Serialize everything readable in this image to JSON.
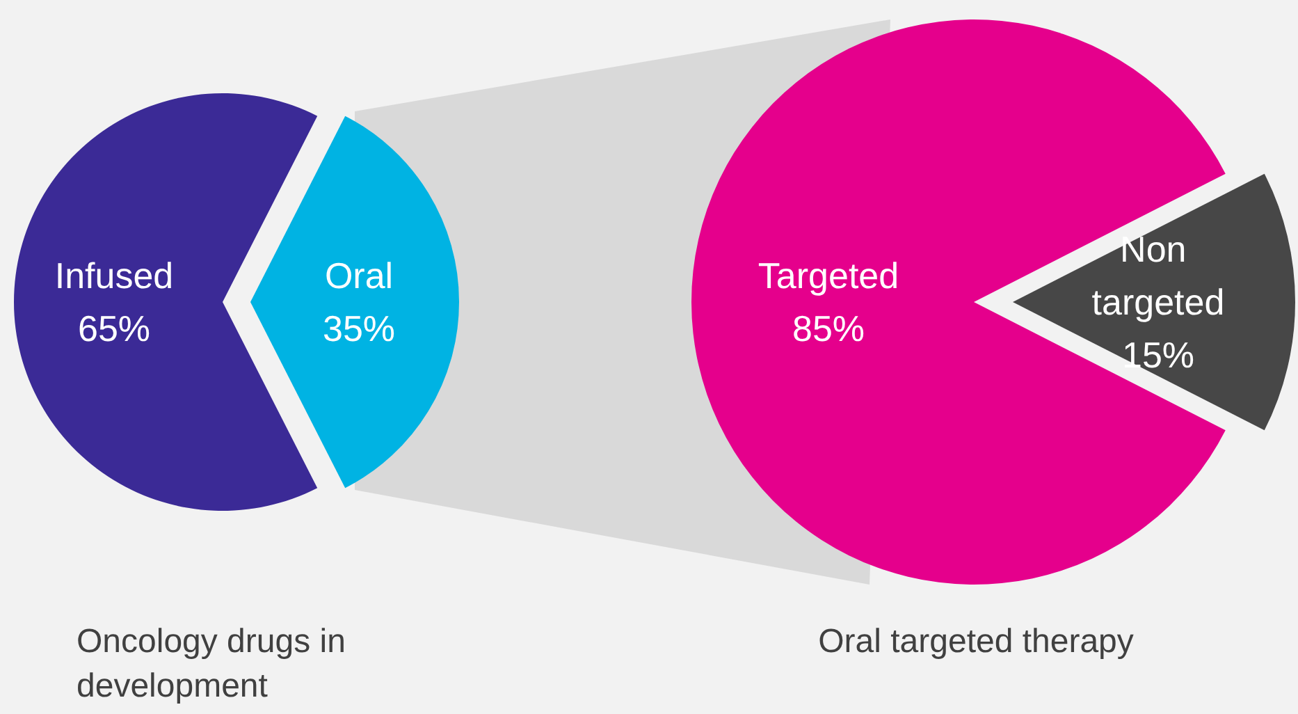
{
  "chart_data": [
    {
      "type": "pie",
      "title": "Oncology drugs in development",
      "categories": [
        "Infused",
        "Oral"
      ],
      "values": [
        65,
        35
      ],
      "colors": [
        "#3b2a96",
        "#00b3e3"
      ],
      "value_labels": [
        "65%",
        "35%"
      ],
      "legend": false
    },
    {
      "type": "pie",
      "title": "Oral targeted therapy",
      "categories": [
        "Targeted",
        "Non targeted"
      ],
      "values": [
        85,
        15
      ],
      "colors": [
        "#e5008c",
        "#474747"
      ],
      "value_labels": [
        "85%",
        "15%"
      ],
      "legend": false
    }
  ]
}
